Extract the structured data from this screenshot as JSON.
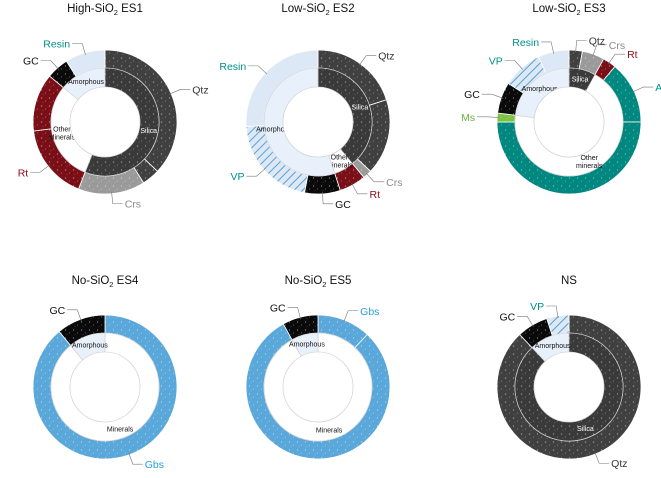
{
  "colors": {
    "quartz": "#404040",
    "cristobalite": "#9a9a9a",
    "silica": "#3a3a3a",
    "rutile": "#7a0f17",
    "resin": "#dde8f6",
    "gc": "#0a0a0a",
    "vp": "#dde8f6",
    "vp_hatch": "#5aa0cc",
    "amorphous": "#e8f0fb",
    "other": "#ffffff",
    "albite": "#00877f",
    "muscovite": "#7cc243",
    "gibbsite": "#5aa7da",
    "teal_label": "#008f8a",
    "blue_label": "#2a9fd6",
    "green_label": "#6cb33f",
    "gray_label": "#8a8a8a",
    "red_label": "#8b0d15"
  },
  "chart_data": [
    {
      "type": "pie",
      "title_main": "High-SiO",
      "title_sub": "2",
      "title_suffix": " ES1",
      "outer": [
        {
          "label": "Qtz",
          "value": 37,
          "color": "quartz"
        },
        {
          "label": "",
          "value": 4,
          "color": "quartz"
        },
        {
          "label": "Crs",
          "value": 15,
          "color": "cristobalite"
        },
        {
          "label": "Rt",
          "value": 17,
          "color": "rutile"
        },
        {
          "label": "",
          "value": 13,
          "color": "rutile"
        },
        {
          "label": "GC",
          "value": 5,
          "color": "gc"
        },
        {
          "label": "Resin",
          "value": 9,
          "color": "resin"
        }
      ],
      "inner": [
        {
          "label": "Silica",
          "value": 56,
          "color": "silica"
        },
        {
          "label": "Other Minerals",
          "value": 30,
          "color": "other"
        },
        {
          "label": "Amorphous",
          "value": 14,
          "color": "amorphous"
        }
      ]
    },
    {
      "type": "pie",
      "title_main": "Low-SiO",
      "title_sub": "2",
      "title_suffix": " ES2",
      "outer": [
        {
          "label": "Qtz",
          "value": 20,
          "color": "quartz"
        },
        {
          "label": "",
          "value": 17,
          "color": "quartz"
        },
        {
          "label": "Crs",
          "value": 2,
          "color": "cristobalite"
        },
        {
          "label": "Rt",
          "value": 6,
          "color": "rutile"
        },
        {
          "label": "GC",
          "value": 8,
          "color": "gc"
        },
        {
          "label": "VP",
          "value": 21,
          "color": "vp"
        },
        {
          "label": "Resin",
          "value": 26,
          "color": "resin"
        }
      ],
      "inner": [
        {
          "label": "Silica",
          "value": 39,
          "color": "silica"
        },
        {
          "label": "Other minerals",
          "value": 6,
          "color": "other"
        },
        {
          "label": "Amorphous",
          "value": 55,
          "color": "amorphous"
        }
      ]
    },
    {
      "type": "pie",
      "title_main": "Low-SiO",
      "title_sub": "2",
      "title_suffix": " ES3",
      "outer": [
        {
          "label": "Qtz",
          "value": 3,
          "color": "quartz"
        },
        {
          "label": "Crs",
          "value": 5,
          "color": "cristobalite"
        },
        {
          "label": "Rt",
          "value": 3,
          "color": "rutile"
        },
        {
          "label": "Ab",
          "value": 14,
          "color": "albite"
        },
        {
          "label": "",
          "value": 50,
          "color": "albite"
        },
        {
          "label": "Ms",
          "value": 2,
          "color": "muscovite"
        },
        {
          "label": "GC",
          "value": 7,
          "color": "gc"
        },
        {
          "label": "VP",
          "value": 9,
          "color": "vp"
        },
        {
          "label": "Resin",
          "value": 7,
          "color": "resin"
        }
      ],
      "inner": [
        {
          "label": "Silica",
          "value": 8,
          "color": "silica"
        },
        {
          "label": "Other minerals",
          "value": 69,
          "color": "other"
        },
        {
          "label": "Amorphous",
          "value": 23,
          "color": "amorphous"
        }
      ]
    },
    {
      "type": "pie",
      "title_main": "No-SiO",
      "title_sub": "2",
      "title_suffix": " ES4",
      "outer": [
        {
          "label": "Gbs",
          "value": 89,
          "color": "gibbsite"
        },
        {
          "label": "GC",
          "value": 11,
          "color": "gc"
        }
      ],
      "inner": [
        {
          "label": "Minerals",
          "value": 89,
          "color": "other"
        },
        {
          "label": "Amorphous",
          "value": 11,
          "color": "amorphous"
        }
      ]
    },
    {
      "type": "pie",
      "title_main": "No-SiO",
      "title_sub": "2",
      "title_suffix": " ES5",
      "outer": [
        {
          "label": "Gbs",
          "value": 12,
          "color": "gibbsite"
        },
        {
          "label": "",
          "value": 80,
          "color": "gibbsite"
        },
        {
          "label": "GC",
          "value": 8,
          "color": "gc"
        }
      ],
      "inner": [
        {
          "label": "Minerals",
          "value": 92,
          "color": "other"
        },
        {
          "label": "Amorphous",
          "value": 8,
          "color": "amorphous"
        }
      ]
    },
    {
      "type": "pie",
      "title_main": "NS",
      "title_sub": "",
      "title_suffix": "",
      "outer": [
        {
          "label": "Qtz",
          "value": 88,
          "color": "quartz"
        },
        {
          "label": "GC",
          "value": 7,
          "color": "gc"
        },
        {
          "label": "VP",
          "value": 5,
          "color": "vp"
        }
      ],
      "inner": [
        {
          "label": "Silica",
          "value": 88,
          "color": "silica"
        },
        {
          "label": "Amorphous",
          "value": 12,
          "color": "amorphous"
        }
      ]
    }
  ]
}
